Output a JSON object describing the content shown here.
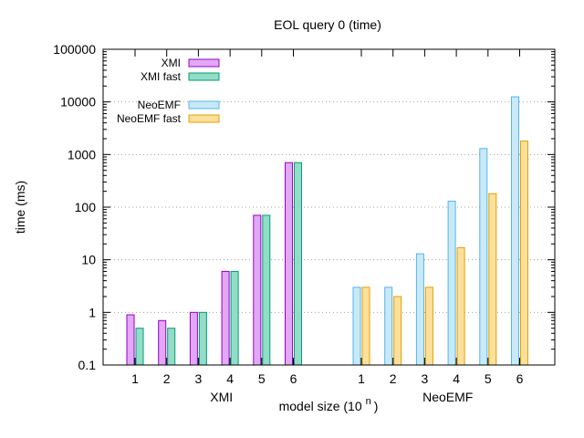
{
  "chart_data": {
    "type": "bar",
    "title": "EOL query 0 (time)",
    "xlabel": "model size (10",
    "xlabel_sup": "n",
    "xlabel_close": ")",
    "ylabel": "time (ms)",
    "yscale": "log",
    "ylim": [
      0.1,
      100000
    ],
    "y_ticks": [
      "0.1",
      "1",
      "10",
      "100",
      "1000",
      "10000",
      "100000"
    ],
    "grid": "horizontal-dotted",
    "legend_position": "top-left",
    "groups": [
      {
        "label": "XMI",
        "categories": [
          "1",
          "2",
          "3",
          "4",
          "5",
          "6"
        ],
        "series": [
          {
            "name": "XMI",
            "color": "#e3a8f5",
            "stroke": "#9400d3",
            "values": [
              0.9,
              0.7,
              1,
              6,
              70,
              700
            ]
          },
          {
            "name": "XMI fast",
            "color": "#93dcc8",
            "stroke": "#009e73",
            "values": [
              0.5,
              0.5,
              1,
              6,
              70,
              700
            ]
          }
        ]
      },
      {
        "label": "NeoEMF",
        "categories": [
          "1",
          "2",
          "3",
          "4",
          "5",
          "6"
        ],
        "series": [
          {
            "name": "NeoEMF",
            "color": "#c8eaf8",
            "stroke": "#56b4e9",
            "values": [
              3,
              3,
              13,
              130,
              1300,
              12500
            ]
          },
          {
            "name": "NeoEMF fast",
            "color": "#fbe09c",
            "stroke": "#e69f00",
            "values": [
              3,
              2,
              3,
              17,
              180,
              1800
            ]
          }
        ]
      }
    ]
  }
}
